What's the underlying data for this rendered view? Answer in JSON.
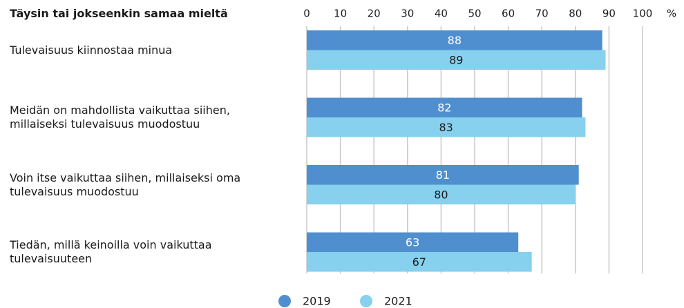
{
  "chart_data": {
    "type": "hbar",
    "title": "Täysin tai jokseenkin samaa mieltä",
    "x_unit": "%",
    "categories": [
      "Tulevaisuus kiinnostaa minua",
      "Meidän on mahdollista vaikuttaa siihen,\nmillaiseksi tulevaisuus muodostuu",
      "Voin itse vaikuttaa siihen, millaiseksi oma\ntulevaisuus muodostuu",
      "Tiedän, millä keinoilla voin vaikuttaa\ntulevaisuuteen"
    ],
    "series": [
      {
        "name": "2019",
        "color": "#4f8fcf",
        "label_color": "#ffffff",
        "values": [
          88,
          82,
          81,
          63
        ]
      },
      {
        "name": "2021",
        "color": "#87d0ee",
        "label_color": "#1a1a1a",
        "values": [
          89,
          83,
          80,
          67
        ]
      }
    ],
    "xlim": [
      0,
      100
    ],
    "xticks": [
      0,
      10,
      20,
      30,
      40,
      50,
      60,
      70,
      80,
      90,
      100
    ],
    "grid": true
  }
}
